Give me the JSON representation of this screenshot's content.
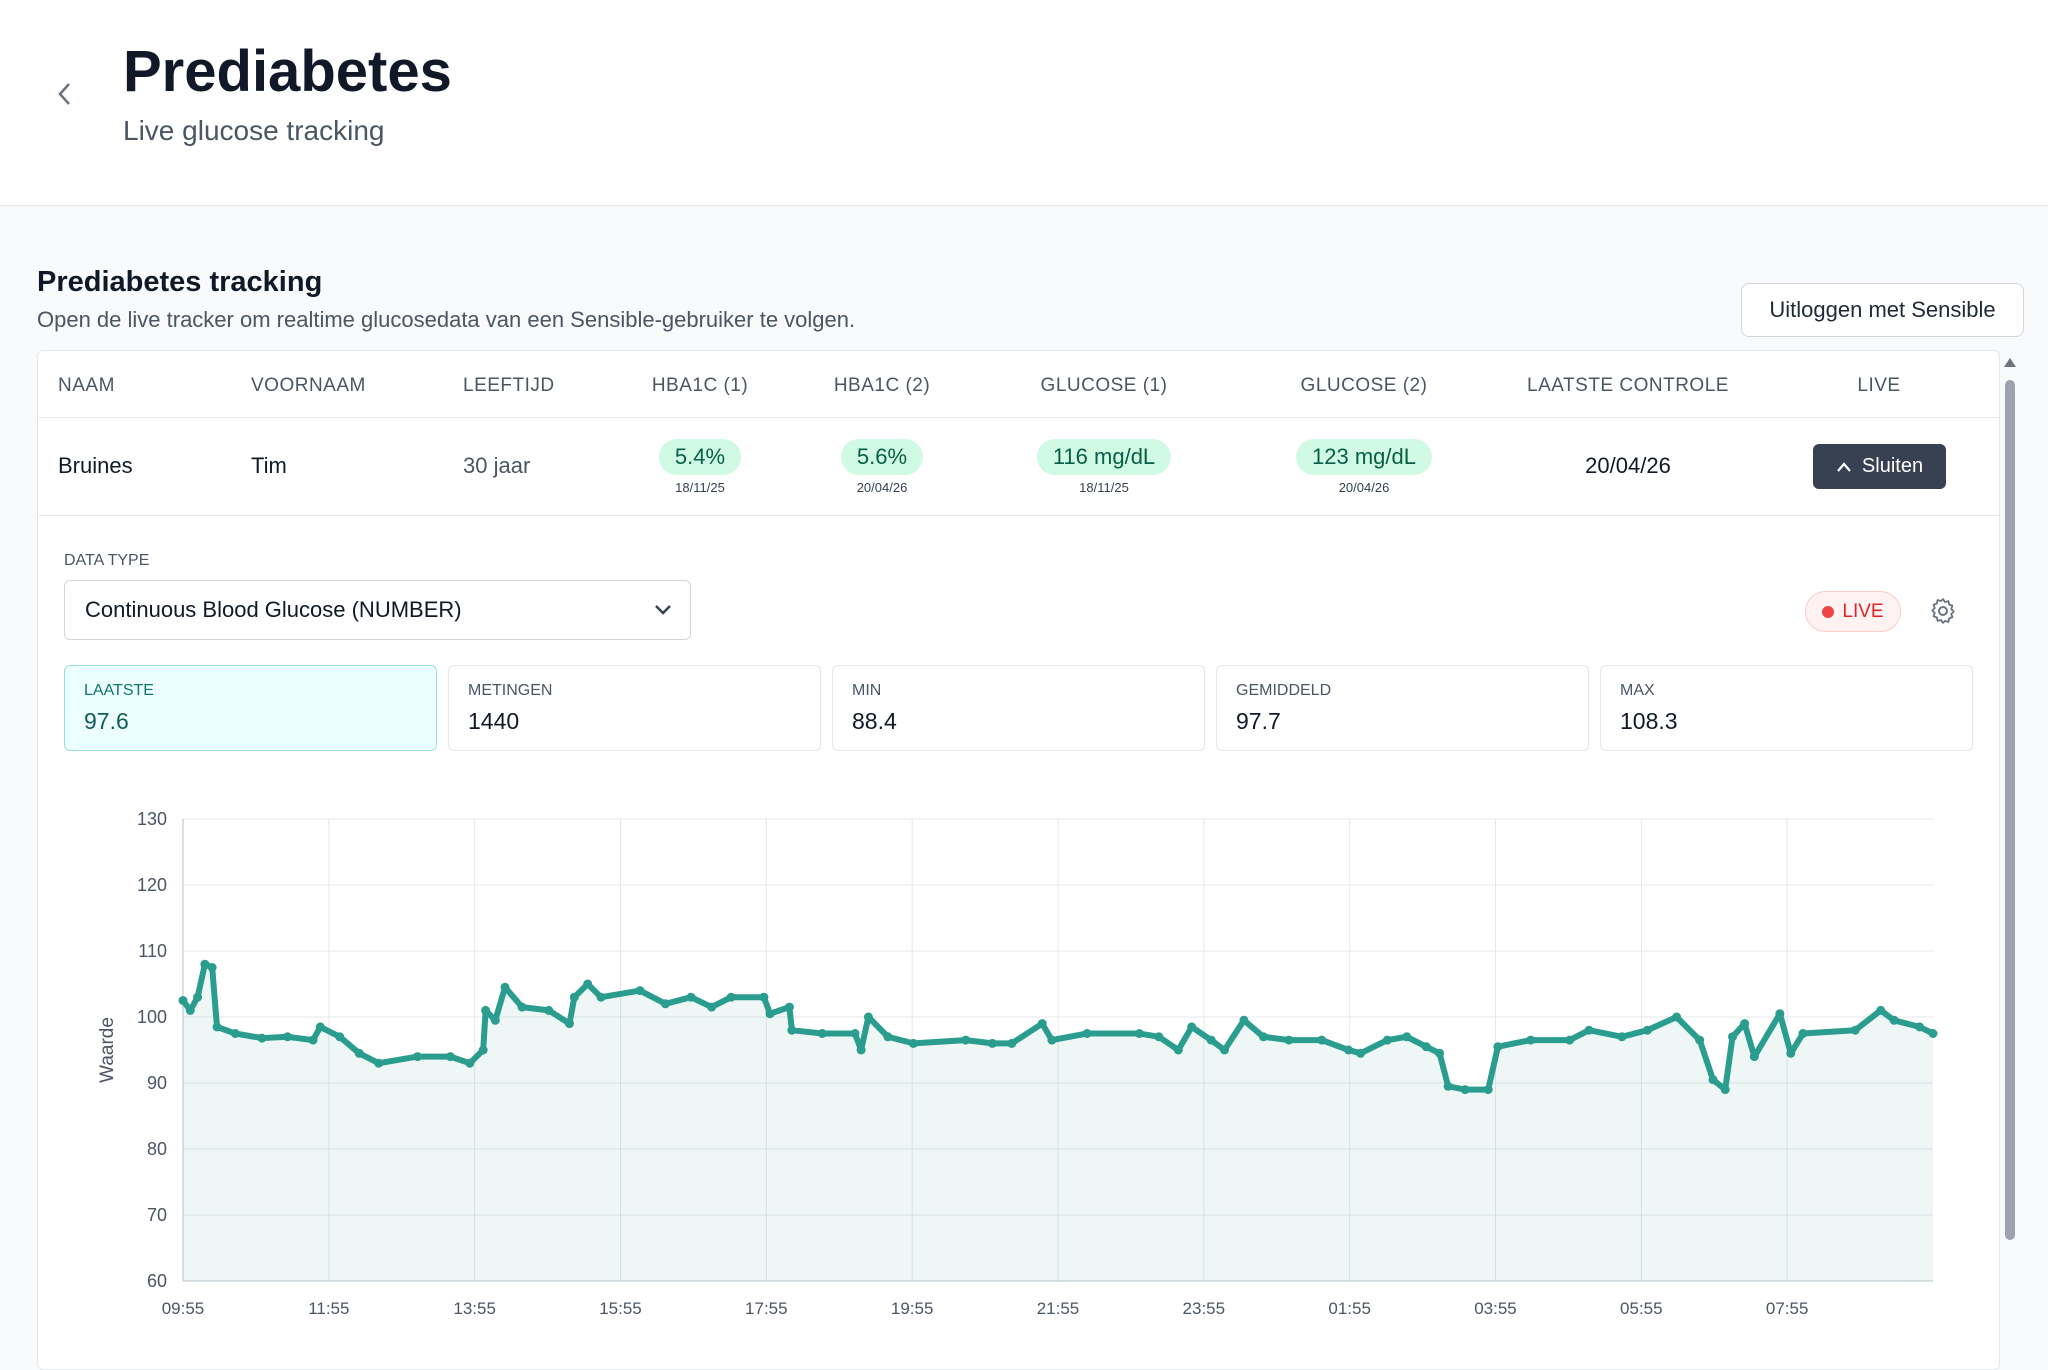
{
  "header": {
    "title": "Prediabetes",
    "subtitle": "Live glucose tracking"
  },
  "section": {
    "title": "Prediabetes tracking",
    "description": "Open de live tracker om realtime glucosedata van een Sensible-gebruiker te volgen.",
    "logout_button": "Uitloggen met Sensible"
  },
  "table": {
    "columns": [
      "NAAM",
      "VOORNAAM",
      "LEEFTIJD",
      "HBA1C (1)",
      "HBA1C (2)",
      "GLUCOSE (1)",
      "GLUCOSE (2)",
      "LAATSTE CONTROLE",
      "LIVE"
    ],
    "rows": [
      {
        "naam": "Bruines",
        "voornaam": "Tim",
        "leeftijd": "30 jaar",
        "hba1c_1": {
          "value": "5.4%",
          "date": "18/11/25"
        },
        "hba1c_2": {
          "value": "5.6%",
          "date": "20/04/26"
        },
        "glucose_1": {
          "value": "116 mg/dL",
          "date": "18/11/25"
        },
        "glucose_2": {
          "value": "123 mg/dL",
          "date": "20/04/26"
        },
        "laatste_controle": "20/04/26",
        "live_button": "Sluiten"
      }
    ]
  },
  "data_type": {
    "label": "DATA TYPE",
    "selected": "Continuous Blood Glucose (NUMBER)"
  },
  "live_badge": "LIVE",
  "stats": [
    {
      "label": "LAATSTE",
      "value": 97.6
    },
    {
      "label": "METINGEN",
      "value": 1440
    },
    {
      "label": "MIN",
      "value": 88.4
    },
    {
      "label": "GEMIDDELD",
      "value": 97.7
    },
    {
      "label": "MAX",
      "value": 108.3
    }
  ],
  "chart_data": {
    "type": "line",
    "ylabel": "Waarde",
    "color": "#2a9d8f",
    "grid": true,
    "x": [
      "09:55",
      "10:01",
      "10:07",
      "10:13",
      "10:19",
      "10:23",
      "10:38",
      "11:00",
      "11:21",
      "11:42",
      "11:48",
      "12:04",
      "12:20",
      "12:36",
      "13:08",
      "13:35",
      "13:51",
      "14:02",
      "14:04",
      "14:12",
      "14:20",
      "14:34",
      "14:56",
      "15:13",
      "15:17",
      "15:28",
      "15:39",
      "16:11",
      "16:32",
      "16:53",
      "17:10",
      "17:26",
      "17:53",
      "17:58",
      "18:14",
      "18:16",
      "18:41",
      "19:08",
      "19:13",
      "19:19",
      "19:35",
      "19:56",
      "20:39",
      "21:01",
      "21:17",
      "21:42",
      "21:50",
      "22:19",
      "23:02",
      "23:18",
      "23:34",
      "23:45",
      "00:01",
      "00:12",
      "00:28",
      "00:44",
      "01:05",
      "01:32",
      "01:54",
      "02:04",
      "02:26",
      "02:42",
      "02:58",
      "03:09",
      "03:16",
      "03:30",
      "03:49",
      "03:57",
      "04:24",
      "04:56",
      "05:12",
      "05:39",
      "06:00",
      "06:24",
      "06:43",
      "06:54",
      "07:04",
      "07:10",
      "07:20",
      "07:28",
      "07:49",
      "07:58",
      "08:08",
      "08:51",
      "09:12",
      "09:23",
      "09:44",
      "09:55"
    ],
    "values": [
      102.5,
      101,
      103,
      108,
      107.5,
      98.5,
      97.5,
      96.8,
      97,
      96.5,
      98.5,
      97,
      94.5,
      93,
      94,
      94,
      93,
      95,
      101,
      99.5,
      104.5,
      101.5,
      101,
      99,
      103,
      105,
      103,
      104,
      102,
      103,
      101.5,
      103,
      103,
      100.5,
      101.5,
      98,
      97.5,
      97.5,
      95,
      100,
      97,
      96,
      96.5,
      96,
      96,
      99,
      96.5,
      97.5,
      97.5,
      97,
      95,
      98.5,
      96.5,
      95,
      99.5,
      97,
      96.5,
      96.5,
      95,
      94.5,
      96.5,
      97,
      95.5,
      94.5,
      89.5,
      89,
      89,
      95.5,
      96.5,
      96.5,
      98,
      97,
      98,
      100,
      96.5,
      90.5,
      89,
      97,
      99,
      94,
      100.5,
      94.5,
      97.5,
      98,
      101,
      99.5,
      98.5,
      97.5
    ],
    "xlim": [
      "09:55",
      "09:55"
    ],
    "xticks": [
      "09:55",
      "11:55",
      "13:55",
      "15:55",
      "17:55",
      "19:55",
      "21:55",
      "23:55",
      "01:55",
      "03:55",
      "05:55",
      "07:55"
    ],
    "ylim": [
      60,
      130
    ],
    "yticks": [
      60,
      70,
      80,
      90,
      100,
      110,
      120,
      130
    ]
  }
}
